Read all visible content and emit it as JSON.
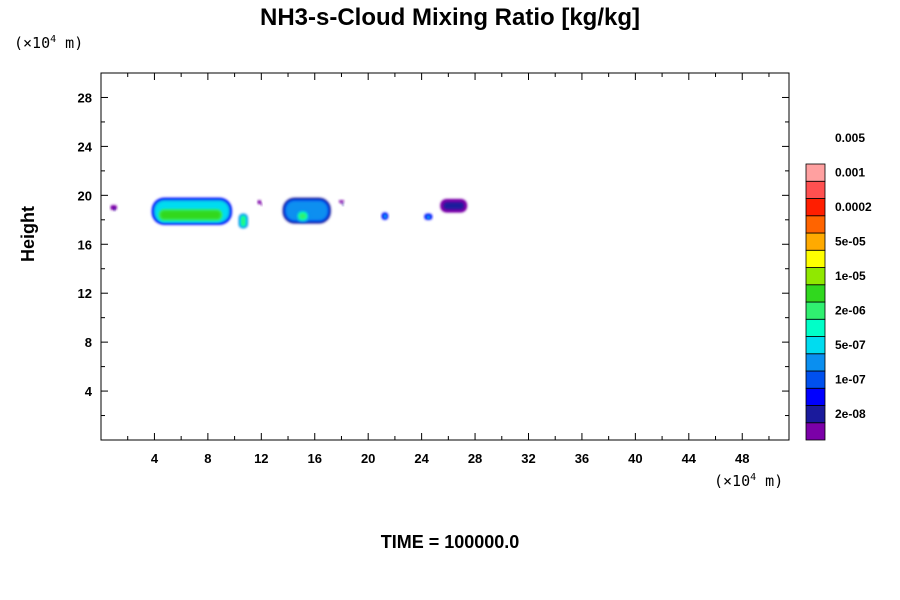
{
  "chart_data": {
    "type": "contour",
    "title": "NH3-s-Cloud Mixing Ratio [kg/kg]",
    "ylabel": "Height",
    "xlabel": "",
    "x_unit": {
      "base": "(×10",
      "exp": "4",
      "tail": " m)"
    },
    "y_unit": {
      "base": "(×10",
      "exp": "4",
      "tail": " m)"
    },
    "xlim": [
      0,
      51.5
    ],
    "ylim": [
      0,
      30
    ],
    "x_ticks": [
      "4",
      "8",
      "12",
      "16",
      "20",
      "24",
      "28",
      "32",
      "36",
      "40",
      "44",
      "48"
    ],
    "y_ticks": [
      "4",
      "8",
      "12",
      "16",
      "20",
      "24",
      "28"
    ],
    "footer": "TIME = 100000.0",
    "colorbar": {
      "colors": [
        "#7b00a8",
        "#1a1a9c",
        "#0000ff",
        "#0050ee",
        "#0a8ff0",
        "#00dcf0",
        "#00ffc8",
        "#30f070",
        "#30d81e",
        "#90e800",
        "#ffff00",
        "#ffaa00",
        "#ff6400",
        "#ff1e00",
        "#ff5050",
        "#ffa0a0"
      ],
      "labels": [
        "2e-08",
        "1e-07",
        "5e-07",
        "2e-06",
        "1e-05",
        "5e-05",
        "0.0002",
        "0.001",
        "0.005"
      ]
    },
    "cloud_regions": [
      {
        "x": [
          0.7,
          1.2
        ],
        "y": [
          18.8,
          19.2
        ],
        "level": 1
      },
      {
        "x": [
          3.8,
          9.8
        ],
        "y": [
          17.6,
          19.8
        ],
        "level": 5
      },
      {
        "x": [
          4.2,
          9.2
        ],
        "y": [
          17.8,
          19.0
        ],
        "level": 8
      },
      {
        "x": [
          10.3,
          11.0
        ],
        "y": [
          17.3,
          18.5
        ],
        "level": 7
      },
      {
        "x": [
          11.7,
          12.0
        ],
        "y": [
          19.3,
          19.6
        ],
        "level": 0
      },
      {
        "x": [
          13.6,
          17.2
        ],
        "y": [
          17.7,
          19.8
        ],
        "level": 4
      },
      {
        "x": [
          14.6,
          15.6
        ],
        "y": [
          17.8,
          18.8
        ],
        "level": 7
      },
      {
        "x": [
          17.8,
          18.2
        ],
        "y": [
          19.4,
          19.6
        ],
        "level": 1
      },
      {
        "x": [
          21.0,
          21.5
        ],
        "y": [
          18.0,
          18.6
        ],
        "level": 5
      },
      {
        "x": [
          24.2,
          24.8
        ],
        "y": [
          18.0,
          18.5
        ],
        "level": 5
      },
      {
        "x": [
          25.4,
          27.4
        ],
        "y": [
          18.6,
          19.7
        ],
        "level": 1
      }
    ]
  }
}
